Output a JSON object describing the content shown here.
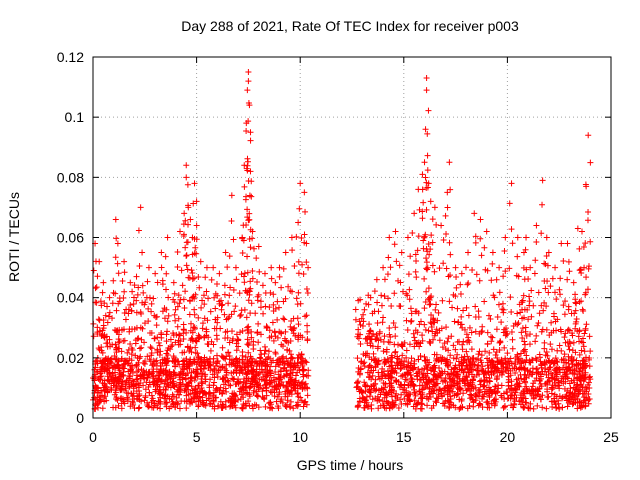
{
  "chart_data": {
    "type": "scatter",
    "title": "Day 288 of 2021, Rate Of TEC Index for receiver p003",
    "xlabel": "GPS time / hours",
    "ylabel": "ROTI / TECUs",
    "xlim": [
      0,
      25
    ],
    "ylim": [
      0,
      0.12
    ],
    "xticks": [
      0,
      5,
      10,
      15,
      20,
      25
    ],
    "xtick_labels": [
      "0",
      "5",
      "10",
      "15",
      "20",
      "25"
    ],
    "yticks": [
      0,
      0.02,
      0.04,
      0.06,
      0.08,
      0.1,
      0.12
    ],
    "ytick_labels": [
      "0",
      "0.02",
      "0.04",
      "0.06",
      "0.08",
      "0.1",
      "0.12"
    ],
    "grid": true,
    "marker": "+",
    "color": "#ff0000",
    "data_gap_hours": [
      10.4,
      12.7
    ],
    "series": [
      {
        "name": "ROTI",
        "x": [
          0.1,
          0.3,
          0.5,
          0.8,
          1.1,
          1.2,
          1.5,
          1.8,
          2.1,
          2.3,
          2.4,
          2.7,
          3.0,
          3.3,
          3.6,
          3.9,
          4.2,
          4.4,
          4.5,
          4.5,
          4.6,
          4.7,
          4.8,
          4.9,
          5.0,
          5.2,
          5.5,
          5.8,
          6.1,
          6.4,
          6.7,
          6.9,
          7.2,
          7.3,
          7.4,
          7.45,
          7.5,
          7.5,
          7.55,
          7.6,
          7.6,
          7.7,
          8.0,
          8.3,
          8.6,
          8.8,
          9.0,
          9.3,
          9.6,
          9.9,
          10.0,
          10.2,
          10.3,
          12.8,
          13.1,
          13.4,
          13.7,
          14.0,
          14.3,
          14.6,
          14.9,
          15.2,
          15.5,
          15.7,
          15.9,
          16.0,
          16.05,
          16.1,
          16.1,
          16.2,
          16.3,
          16.5,
          16.8,
          17.1,
          17.2,
          17.5,
          17.8,
          18.1,
          18.4,
          18.7,
          19.0,
          19.3,
          19.6,
          19.9,
          20.2,
          20.5,
          20.8,
          20.9,
          21.1,
          21.4,
          21.7,
          21.9,
          22.0,
          22.3,
          22.6,
          22.9,
          23.2,
          23.4,
          23.6,
          23.7,
          23.8,
          23.9
        ],
        "y": [
          0.058,
          0.052,
          0.045,
          0.04,
          0.066,
          0.058,
          0.052,
          0.045,
          0.047,
          0.07,
          0.044,
          0.05,
          0.048,
          0.055,
          0.06,
          0.045,
          0.062,
          0.068,
          0.084,
          0.08,
          0.07,
          0.066,
          0.06,
          0.078,
          0.072,
          0.052,
          0.05,
          0.05,
          0.048,
          0.055,
          0.074,
          0.05,
          0.06,
          0.084,
          0.098,
          0.109,
          0.115,
          0.112,
          0.104,
          0.095,
          0.082,
          0.062,
          0.057,
          0.048,
          0.05,
          0.045,
          0.05,
          0.055,
          0.06,
          0.065,
          0.078,
          0.075,
          0.058,
          0.039,
          0.036,
          0.04,
          0.046,
          0.05,
          0.06,
          0.062,
          0.055,
          0.06,
          0.068,
          0.076,
          0.081,
          0.085,
          0.096,
          0.109,
          0.113,
          0.078,
          0.072,
          0.07,
          0.064,
          0.075,
          0.085,
          0.05,
          0.048,
          0.055,
          0.068,
          0.066,
          0.062,
          0.055,
          0.05,
          0.06,
          0.078,
          0.06,
          0.055,
          0.06,
          0.05,
          0.064,
          0.079,
          0.06,
          0.055,
          0.05,
          0.058,
          0.058,
          0.045,
          0.063,
          0.062,
          0.05,
          0.077,
          0.094
        ]
      }
    ]
  }
}
